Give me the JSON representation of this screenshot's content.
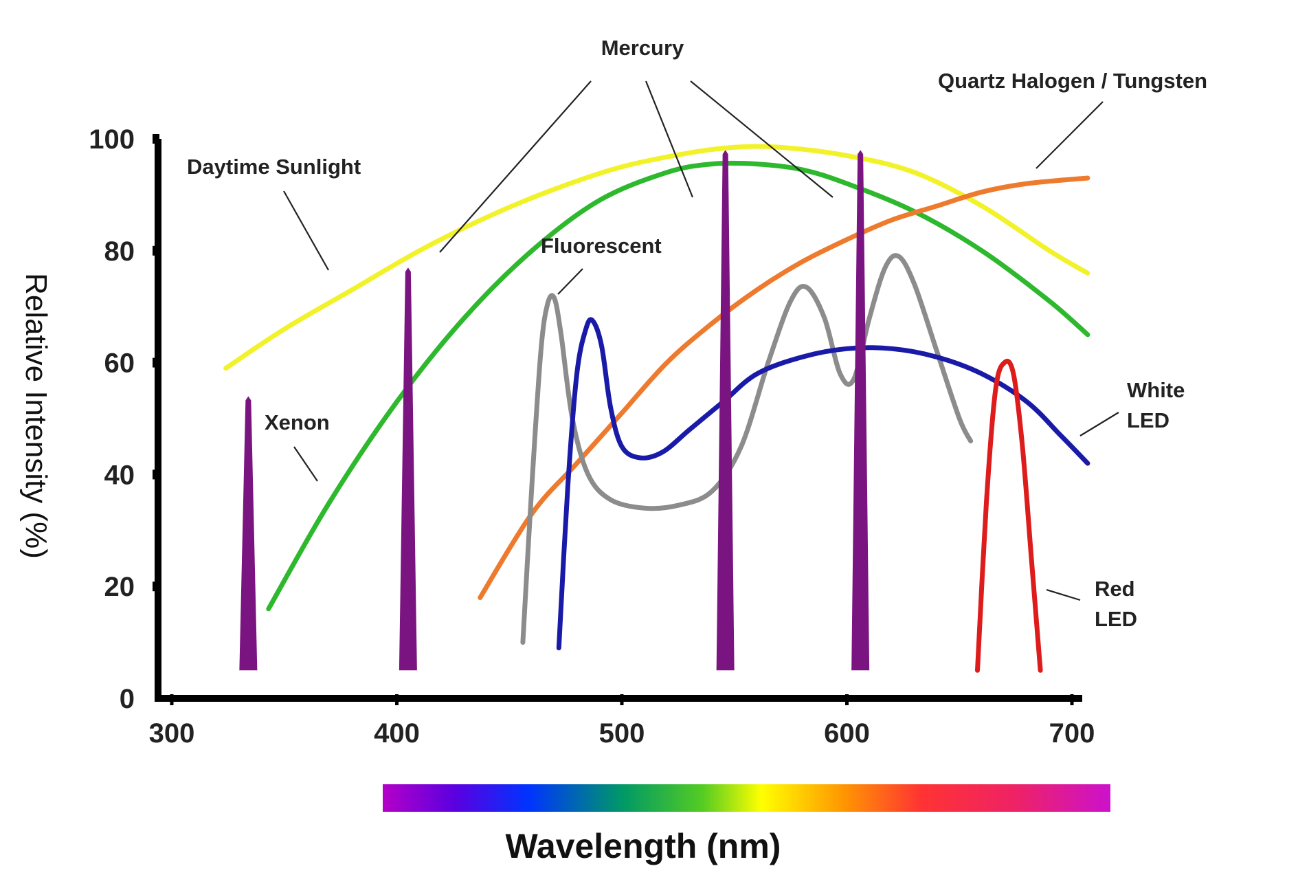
{
  "chart_data": {
    "type": "line",
    "title": "",
    "xlabel": "Wavelength (nm)",
    "ylabel": "Relative Intensity (%)",
    "xlim": [
      300,
      700
    ],
    "ylim": [
      0,
      100
    ],
    "x_ticks": [
      "300",
      "400",
      "500",
      "600",
      "700"
    ],
    "y_ticks": [
      "0",
      "20",
      "40",
      "60",
      "80",
      "100"
    ],
    "grid": false,
    "legend": "none",
    "colors": {
      "daytime_sunlight": "#f2f22a",
      "xenon": "#2db82d",
      "quartz_halogen": "#ee7a2e",
      "fluorescent": "#8c8c8c",
      "white_led": "#1a1aa8",
      "red_led": "#dd1c1c",
      "mercury": "#7a1480"
    },
    "annotations": {
      "mercury": "Mercury",
      "quartz": "Quartz Halogen / Tungsten",
      "sunlight": "Daytime Sunlight",
      "fluorescent": "Fluorescent",
      "xenon": "Xenon",
      "white_led_1": "White",
      "white_led_2": "LED",
      "red_led_1": "Red",
      "red_led_2": "LED"
    },
    "series": [
      {
        "key": "daytime_sunlight",
        "width": 7,
        "x": [
          324,
          350,
          380,
          410,
          440,
          470,
          500,
          530,
          550,
          570,
          600,
          630,
          660,
          690,
          707
        ],
        "y": [
          59,
          66,
          73,
          80,
          86,
          91,
          95,
          97.5,
          98.5,
          98.5,
          97,
          94,
          88,
          80,
          76
        ]
      },
      {
        "key": "xenon",
        "width": 7,
        "x": [
          343,
          370,
          400,
          430,
          460,
          490,
          520,
          540,
          560,
          580,
          600,
          630,
          660,
          690,
          707
        ],
        "y": [
          16,
          35,
          53,
          68,
          80,
          89,
          94,
          95.5,
          95.5,
          94.5,
          92,
          87,
          80,
          71,
          65
        ]
      },
      {
        "key": "quartz_halogen",
        "width": 7,
        "x": [
          437,
          460,
          480,
          500,
          520,
          540,
          560,
          580,
          600,
          620,
          640,
          660,
          680,
          707
        ],
        "y": [
          18,
          33,
          42,
          51,
          60,
          67,
          73,
          78,
          82,
          85.5,
          88,
          90.5,
          92,
          93
        ]
      },
      {
        "key": "fluorescent",
        "width": 7,
        "x": [
          456,
          460,
          464,
          467,
          470,
          473,
          478,
          485,
          495,
          510,
          525,
          540,
          553,
          565,
          575,
          582,
          590,
          597,
          603,
          610,
          617,
          623,
          630,
          640,
          650,
          655
        ],
        "y": [
          10,
          38,
          62,
          70.5,
          71.5,
          65,
          50,
          40,
          35.5,
          34,
          34.5,
          37,
          45,
          60,
          71,
          73.5,
          68,
          58,
          57,
          68,
          77,
          79,
          74,
          62,
          50,
          46
        ]
      },
      {
        "key": "white_led",
        "width": 7,
        "x": [
          472,
          476,
          480,
          484,
          487,
          491,
          495,
          500,
          508,
          518,
          530,
          545,
          560,
          580,
          600,
          620,
          640,
          660,
          680,
          695,
          707
        ],
        "y": [
          9,
          38,
          58,
          66,
          67.5,
          63,
          52,
          45,
          43,
          44,
          48,
          53,
          58,
          61,
          62.5,
          62.5,
          61,
          58,
          53,
          47,
          42
        ]
      },
      {
        "key": "red_led",
        "width": 7,
        "x": [
          658,
          662,
          666,
          670,
          674,
          678,
          682,
          686
        ],
        "y": [
          5,
          35,
          55,
          60,
          58,
          45,
          25,
          5
        ]
      }
    ],
    "spikes": [
      {
        "key": "mercury",
        "x": 334,
        "y": 54
      },
      {
        "key": "mercury",
        "x": 405,
        "y": 77
      },
      {
        "key": "mercury",
        "x": 546,
        "y": 98
      },
      {
        "key": "mercury",
        "x": 606,
        "y": 98
      }
    ]
  }
}
